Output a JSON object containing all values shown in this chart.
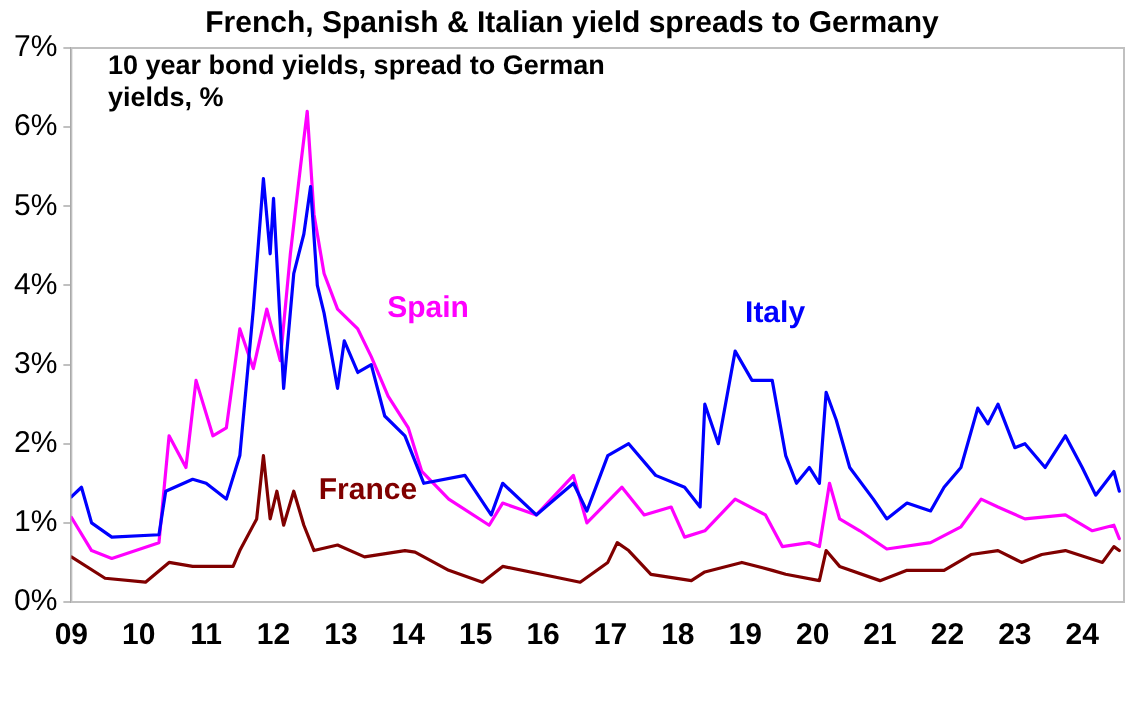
{
  "chart_data": {
    "type": "line",
    "title": "French, Spanish & Italian yield spreads to Germany",
    "subtitle": "10 year bond yields, spread to German yields, %",
    "xlim": [
      2009,
      2024.62
    ],
    "xticks": [
      {
        "value": 2009,
        "label": "09"
      },
      {
        "value": 2010,
        "label": "10"
      },
      {
        "value": 2011,
        "label": "11"
      },
      {
        "value": 2012,
        "label": "12"
      },
      {
        "value": 2013,
        "label": "13"
      },
      {
        "value": 2014,
        "label": "14"
      },
      {
        "value": 2015,
        "label": "15"
      },
      {
        "value": 2016,
        "label": "16"
      },
      {
        "value": 2017,
        "label": "17"
      },
      {
        "value": 2018,
        "label": "18"
      },
      {
        "value": 2019,
        "label": "19"
      },
      {
        "value": 2020,
        "label": "20"
      },
      {
        "value": 2021,
        "label": "21"
      },
      {
        "value": 2022,
        "label": "22"
      },
      {
        "value": 2023,
        "label": "23"
      },
      {
        "value": 2024,
        "label": "24"
      }
    ],
    "ylim": [
      0,
      7
    ],
    "yticks": [
      {
        "value": 0,
        "label": "0%"
      },
      {
        "value": 1,
        "label": "1%"
      },
      {
        "value": 2,
        "label": "2%"
      },
      {
        "value": 3,
        "label": "3%"
      },
      {
        "value": 4,
        "label": "4%"
      },
      {
        "value": 5,
        "label": "5%"
      },
      {
        "value": 6,
        "label": "6%"
      },
      {
        "value": 7,
        "label": "7%"
      }
    ],
    "grid": false,
    "legend": false,
    "marker": "none",
    "line_style": "solid",
    "series": [
      {
        "name": "Italy",
        "color": "#0000ff",
        "x": [
          2009,
          2009.15,
          2009.3,
          2009.6,
          2010.3,
          2010.4,
          2010.8,
          2011.0,
          2011.3,
          2011.5,
          2011.7,
          2011.85,
          2011.95,
          2012.0,
          2012.15,
          2012.3,
          2012.45,
          2012.55,
          2012.65,
          2012.75,
          2012.95,
          2013.05,
          2013.25,
          2013.45,
          2013.65,
          2013.95,
          2014.23,
          2014.84,
          2015.23,
          2015.4,
          2015.9,
          2016.45,
          2016.65,
          2016.96,
          2017.27,
          2017.67,
          2018.1,
          2018.33,
          2018.4,
          2018.6,
          2018.85,
          2019.1,
          2019.4,
          2019.6,
          2019.76,
          2019.95,
          2020.1,
          2020.2,
          2020.35,
          2020.55,
          2020.9,
          2021.1,
          2021.4,
          2021.75,
          2021.95,
          2022.2,
          2022.45,
          2022.6,
          2022.75,
          2023.0,
          2023.15,
          2023.45,
          2023.75,
          2024.0,
          2024.2,
          2024.47,
          2024.55
        ],
        "values": [
          1.33,
          1.45,
          1.0,
          0.82,
          0.85,
          1.4,
          1.55,
          1.5,
          1.3,
          1.85,
          3.7,
          5.35,
          4.4,
          5.1,
          2.7,
          4.15,
          4.65,
          5.25,
          4.0,
          3.65,
          2.7,
          3.3,
          2.9,
          3.0,
          2.35,
          2.1,
          1.5,
          1.6,
          1.1,
          1.5,
          1.1,
          1.5,
          1.15,
          1.85,
          2.0,
          1.6,
          1.45,
          1.2,
          2.5,
          2.0,
          3.17,
          2.8,
          2.8,
          1.85,
          1.5,
          1.7,
          1.5,
          2.65,
          2.3,
          1.7,
          1.3,
          1.05,
          1.25,
          1.15,
          1.45,
          1.7,
          2.45,
          2.25,
          2.5,
          1.95,
          2.0,
          1.7,
          2.1,
          1.7,
          1.35,
          1.65,
          1.4
        ]
      },
      {
        "name": "Spain",
        "color": "#ff00ff",
        "x": [
          2009,
          2009.3,
          2009.6,
          2010.3,
          2010.45,
          2010.7,
          2010.85,
          2011.1,
          2011.3,
          2011.5,
          2011.7,
          2011.9,
          2012.1,
          2012.25,
          2012.4,
          2012.5,
          2012.6,
          2012.75,
          2012.95,
          2013.25,
          2013.45,
          2013.7,
          2014.0,
          2014.2,
          2014.6,
          2015.2,
          2015.4,
          2015.9,
          2016.45,
          2016.65,
          2017.17,
          2017.5,
          2017.9,
          2018.1,
          2018.4,
          2018.85,
          2019.3,
          2019.55,
          2019.95,
          2020.1,
          2020.25,
          2020.4,
          2020.7,
          2021.1,
          2021.75,
          2022.2,
          2022.5,
          2022.75,
          2023.15,
          2023.75,
          2024.15,
          2024.47,
          2024.55
        ],
        "values": [
          1.07,
          0.65,
          0.55,
          0.75,
          2.1,
          1.7,
          2.8,
          2.1,
          2.2,
          3.45,
          2.95,
          3.7,
          3.05,
          4.4,
          5.5,
          6.2,
          4.9,
          4.15,
          3.7,
          3.45,
          3.1,
          2.6,
          2.2,
          1.65,
          1.3,
          0.97,
          1.25,
          1.1,
          1.6,
          1.0,
          1.45,
          1.1,
          1.2,
          0.82,
          0.9,
          1.3,
          1.1,
          0.7,
          0.75,
          0.7,
          1.5,
          1.05,
          0.9,
          0.67,
          0.75,
          0.95,
          1.3,
          1.2,
          1.05,
          1.1,
          0.9,
          0.97,
          0.8
        ]
      },
      {
        "name": "France",
        "color": "#800000",
        "x": [
          2009,
          2009.5,
          2010.1,
          2010.45,
          2010.8,
          2011.4,
          2011.5,
          2011.75,
          2011.85,
          2011.95,
          2012.05,
          2012.15,
          2012.3,
          2012.45,
          2012.6,
          2012.95,
          2013.35,
          2013.95,
          2014.1,
          2014.6,
          2015.1,
          2015.4,
          2016.55,
          2016.96,
          2017.1,
          2017.27,
          2017.6,
          2018.2,
          2018.4,
          2018.95,
          2019.4,
          2019.6,
          2020.1,
          2020.2,
          2020.4,
          2021.0,
          2021.4,
          2021.95,
          2022.35,
          2022.75,
          2023.1,
          2023.4,
          2023.75,
          2024.3,
          2024.47,
          2024.55
        ],
        "values": [
          0.57,
          0.3,
          0.25,
          0.5,
          0.45,
          0.45,
          0.65,
          1.05,
          1.85,
          1.05,
          1.4,
          0.97,
          1.4,
          0.97,
          0.65,
          0.72,
          0.57,
          0.65,
          0.63,
          0.4,
          0.25,
          0.45,
          0.25,
          0.5,
          0.75,
          0.65,
          0.35,
          0.27,
          0.38,
          0.5,
          0.4,
          0.35,
          0.27,
          0.65,
          0.45,
          0.27,
          0.4,
          0.4,
          0.6,
          0.65,
          0.5,
          0.6,
          0.65,
          0.5,
          0.7,
          0.65
        ]
      }
    ]
  }
}
